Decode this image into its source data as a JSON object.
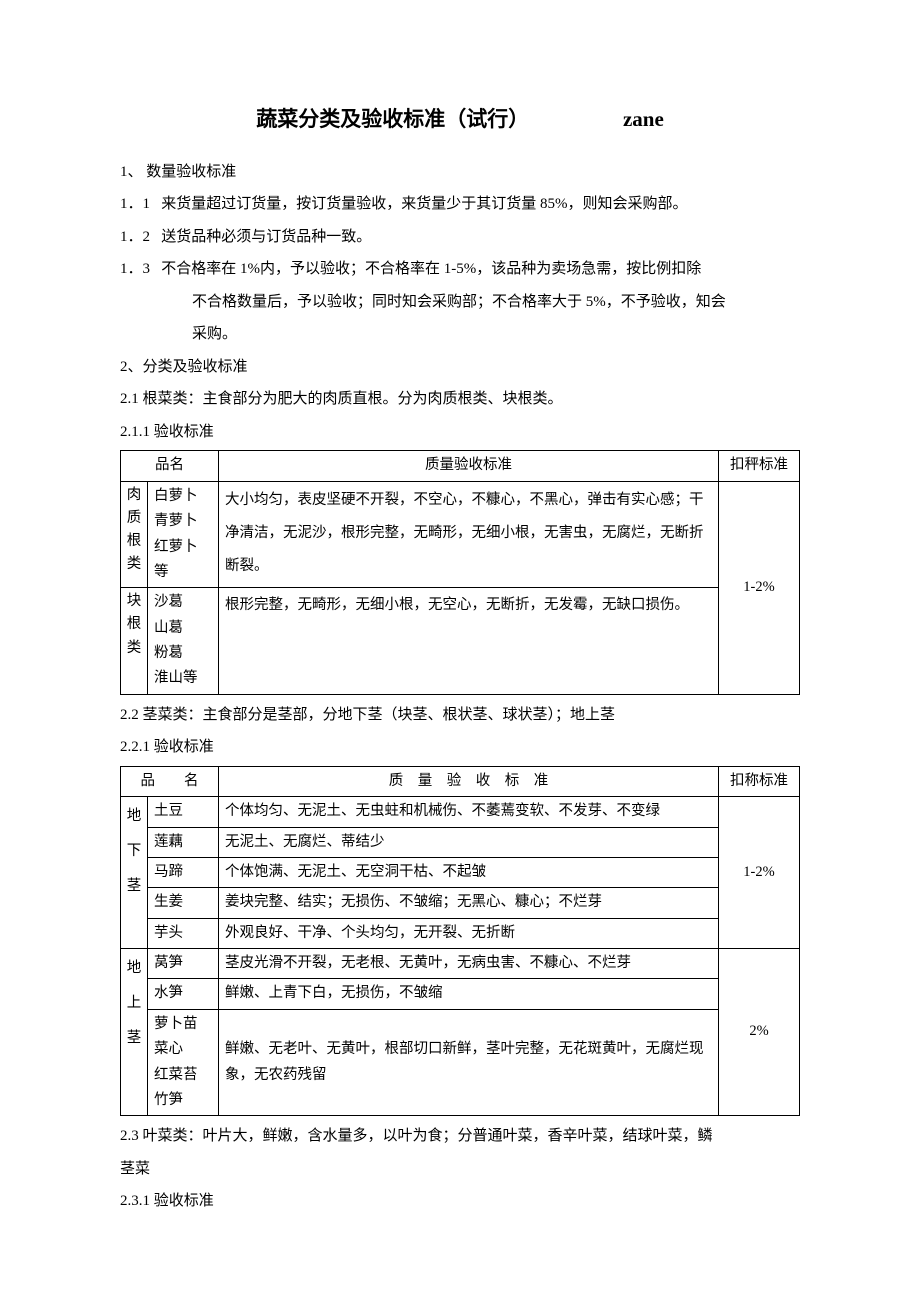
{
  "title": {
    "main": "蔬菜分类及验收标准（试行）",
    "tag": "zane"
  },
  "s1": {
    "h": "1、 数量验收标准",
    "p1_label": "1．1",
    "p1": "来货量超过订货量，按订货量验收，来货量少于其订货量 85%，则知会采购部。",
    "p2_label": "1．2",
    "p2": "送货品种必须与订货品种一致。",
    "p3_label": "1．3",
    "p3a": "不合格率在 1%内，予以验收；不合格率在 1-5%，该品种为卖场急需，按比例扣除",
    "p3b": "不合格数量后，予以验收；同时知会采购部；不合格率大于 5%，不予验收，知会",
    "p3c": "采购。"
  },
  "s2": {
    "h": "2、分类及验收标准",
    "s21": "2.1 根菜类：主食部分为肥大的肉质直根。分为肉质根类、块根类。",
    "s211": "2.1.1 验收标准",
    "s22": "2.2 茎菜类：主食部分是茎部，分地下茎（块茎、根状茎、球状茎）；地上茎",
    "s221": "2.2.1 验收标准",
    "s23": "2.3 叶菜类：叶片大，鲜嫩，含水量多，以叶为食；分普通叶菜，香辛叶菜，结球叶菜，鳞",
    "s23b": "茎菜",
    "s231": "2.3.1  验收标准"
  },
  "t1": {
    "h_name": "品名",
    "h_std": "质量验收标准",
    "h_ded": "扣秤标准",
    "cat1": "肉质根类",
    "n1a": "白萝卜",
    "n1b": "青萝卜",
    "n1c": "红萝卜",
    "n1d": "等",
    "d1": "大小均匀，表皮坚硬不开裂，不空心，不糠心，不黑心，弹击有实心感；干净清洁，无泥沙，根形完整，无畸形，无细小根，无害虫，无腐烂，无断折断裂。",
    "cat2": "块根类",
    "n2a": "沙葛",
    "n2b": "山葛",
    "n2c": "粉葛",
    "n2d": "淮山等",
    "d2": "根形完整，无畸形，无细小根，无空心，无断折，无发霉，无缺口损伤。",
    "ded": "1-2%"
  },
  "t2": {
    "h_name": "品　　名",
    "h_std": "质　量　验　收　标　准",
    "h_ded": "扣称标准",
    "cat1": "地下茎",
    "r1n": "土豆",
    "r1d": "个体均匀、无泥土、无虫蛀和机械伤、不萎蔫变软、不发芽、不变绿",
    "r2n": "莲藕",
    "r2d": "无泥土、无腐烂、蒂结少",
    "r3n": "马蹄",
    "r3d": "个体饱满、无泥土、无空洞干枯、不起皱",
    "r4n": "生姜",
    "r4d": "姜块完整、结实；无损伤、不皱缩；无黑心、糠心；不烂芽",
    "r5n": "芋头",
    "r5d": "外观良好、干净、个头均匀，无开裂、无折断",
    "ded1": "1-2%",
    "cat2": "地上茎",
    "r6n": "莴笋",
    "r6d": "茎皮光滑不开裂，无老根、无黄叶，无病虫害、不糠心、不烂芽",
    "r7n": "水笋",
    "r7d": "鲜嫩、上青下白，无损伤，不皱缩",
    "r8na": "萝卜苗",
    "r8nb": "菜心",
    "r8nc": "红菜苔",
    "r8nd": "竹笋",
    "r8d": "鲜嫩、无老叶、无黄叶，根部切口新鲜，茎叶完整，无花斑黄叶，无腐烂现象，无农药残留",
    "ded2": "2%"
  }
}
